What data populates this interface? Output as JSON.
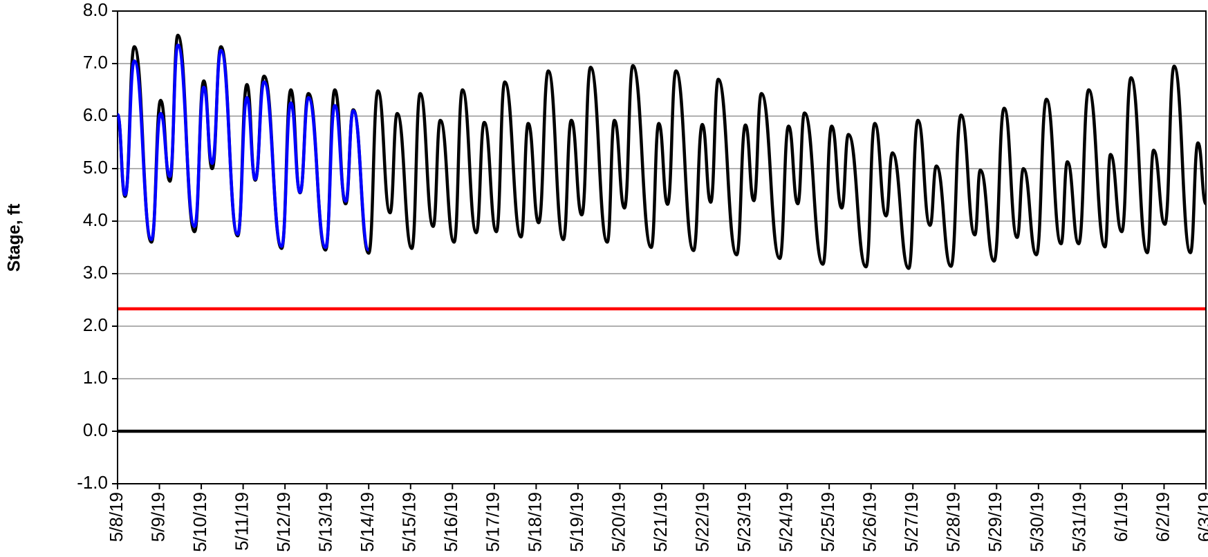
{
  "chart_data": {
    "type": "line",
    "y_label": "Stage, ft",
    "ylim": [
      -1,
      8
    ],
    "yticks": [
      {
        "value": -1,
        "label": "-1.0"
      },
      {
        "value": 0,
        "label": "0.0"
      },
      {
        "value": 1,
        "label": "1.0"
      },
      {
        "value": 2,
        "label": "2.0"
      },
      {
        "value": 3,
        "label": "3.0"
      },
      {
        "value": 4,
        "label": "4.0"
      },
      {
        "value": 5,
        "label": "5.0"
      },
      {
        "value": 6,
        "label": "6.0"
      },
      {
        "value": 7,
        "label": "7.0"
      },
      {
        "value": 8,
        "label": "8.0"
      }
    ],
    "xlim": [
      0,
      26
    ],
    "xticks": [
      {
        "value": 0,
        "label": "5/8/19"
      },
      {
        "value": 1,
        "label": "5/9/19"
      },
      {
        "value": 2,
        "label": "5/10/19"
      },
      {
        "value": 3,
        "label": "5/11/19"
      },
      {
        "value": 4,
        "label": "5/12/19"
      },
      {
        "value": 5,
        "label": "5/13/19"
      },
      {
        "value": 6,
        "label": "5/14/19"
      },
      {
        "value": 7,
        "label": "5/15/19"
      },
      {
        "value": 8,
        "label": "5/16/19"
      },
      {
        "value": 9,
        "label": "5/17/19"
      },
      {
        "value": 10,
        "label": "5/18/19"
      },
      {
        "value": 11,
        "label": "5/19/19"
      },
      {
        "value": 12,
        "label": "5/20/19"
      },
      {
        "value": 13,
        "label": "5/21/19"
      },
      {
        "value": 14,
        "label": "5/22/19"
      },
      {
        "value": 15,
        "label": "5/23/19"
      },
      {
        "value": 16,
        "label": "5/24/19"
      },
      {
        "value": 17,
        "label": "5/25/19"
      },
      {
        "value": 18,
        "label": "5/26/19"
      },
      {
        "value": 19,
        "label": "5/27/19"
      },
      {
        "value": 20,
        "label": "5/28/19"
      },
      {
        "value": 21,
        "label": "5/29/19"
      },
      {
        "value": 22,
        "label": "5/30/19"
      },
      {
        "value": 23,
        "label": "5/31/19"
      },
      {
        "value": 24,
        "label": "6/1/19"
      },
      {
        "value": 25,
        "label": "6/2/19"
      },
      {
        "value": 26,
        "label": "6/3/19"
      }
    ],
    "grid": true,
    "hlines": [
      {
        "value": 2.33,
        "color": "#ff0000"
      },
      {
        "value": 0,
        "color": "#000000"
      }
    ],
    "series": [
      {
        "color": "#000000",
        "x": [
          0,
          0.18,
          0.4,
          0.81,
          1.03,
          1.25,
          1.44,
          1.84,
          2.06,
          2.26,
          2.47,
          2.87,
          3.09,
          3.29,
          3.5,
          3.92,
          4.14,
          4.36,
          4.56,
          4.97,
          5.19,
          5.45,
          5.63,
          6.0,
          6.22,
          6.51,
          6.68,
          7.03,
          7.23,
          7.54,
          7.71,
          8.04,
          8.24,
          8.57,
          8.76,
          9.05,
          9.25,
          9.64,
          9.81,
          10.06,
          10.29,
          10.65,
          10.84,
          11.09,
          11.3,
          11.7,
          11.87,
          12.11,
          12.31,
          12.75,
          12.93,
          13.14,
          13.34,
          13.76,
          13.97,
          14.17,
          14.35,
          14.79,
          15.0,
          15.2,
          15.38,
          15.82,
          16.03,
          16.25,
          16.41,
          16.85,
          17.06,
          17.3,
          17.46,
          17.88,
          18.09,
          18.36,
          18.51,
          18.9,
          19.12,
          19.41,
          19.56,
          19.91,
          20.15,
          20.48,
          20.61,
          20.94,
          21.18,
          21.49,
          21.64,
          21.95,
          22.19,
          22.54,
          22.69,
          22.96,
          23.2,
          23.59,
          23.72,
          23.99,
          24.21,
          24.6,
          24.75,
          25.02,
          25.24,
          25.63,
          25.81,
          26.0
        ],
        "values": [
          6.03,
          4.47,
          7.32,
          3.6,
          6.3,
          4.76,
          7.54,
          3.8,
          6.67,
          5.0,
          7.32,
          3.72,
          6.6,
          4.78,
          6.76,
          3.48,
          6.5,
          4.54,
          6.43,
          3.45,
          6.5,
          4.33,
          6.12,
          3.39,
          6.48,
          4.16,
          6.05,
          3.48,
          6.43,
          3.9,
          5.92,
          3.6,
          6.5,
          3.78,
          5.88,
          3.8,
          6.65,
          3.7,
          5.86,
          3.97,
          6.86,
          3.65,
          5.92,
          4.12,
          6.93,
          3.6,
          5.92,
          4.25,
          6.96,
          3.5,
          5.86,
          4.32,
          6.86,
          3.44,
          5.84,
          4.36,
          6.7,
          3.36,
          5.83,
          4.39,
          6.43,
          3.29,
          5.81,
          4.33,
          6.06,
          3.18,
          5.81,
          4.25,
          5.65,
          3.13,
          5.86,
          4.1,
          5.3,
          3.1,
          5.92,
          3.92,
          5.05,
          3.14,
          6.02,
          3.74,
          4.97,
          3.24,
          6.15,
          3.69,
          5.0,
          3.36,
          6.32,
          3.57,
          5.13,
          3.57,
          6.5,
          3.51,
          5.27,
          3.8,
          6.73,
          3.4,
          5.35,
          3.94,
          6.95,
          3.4,
          5.49,
          4.33
        ]
      },
      {
        "color": "#0000ff",
        "x": [
          0,
          0.18,
          0.4,
          0.81,
          1.03,
          1.25,
          1.44,
          1.84,
          2.06,
          2.26,
          2.47,
          2.87,
          3.09,
          3.29,
          3.5,
          3.92,
          4.14,
          4.36,
          4.56,
          4.97,
          5.19,
          5.45,
          5.63,
          6.0
        ],
        "values": [
          6.03,
          4.5,
          7.05,
          3.65,
          6.05,
          4.85,
          7.35,
          3.9,
          6.55,
          5.1,
          7.25,
          3.75,
          6.35,
          4.8,
          6.65,
          3.52,
          6.25,
          4.55,
          6.35,
          3.5,
          6.2,
          4.38,
          6.1,
          3.45
        ]
      }
    ]
  }
}
